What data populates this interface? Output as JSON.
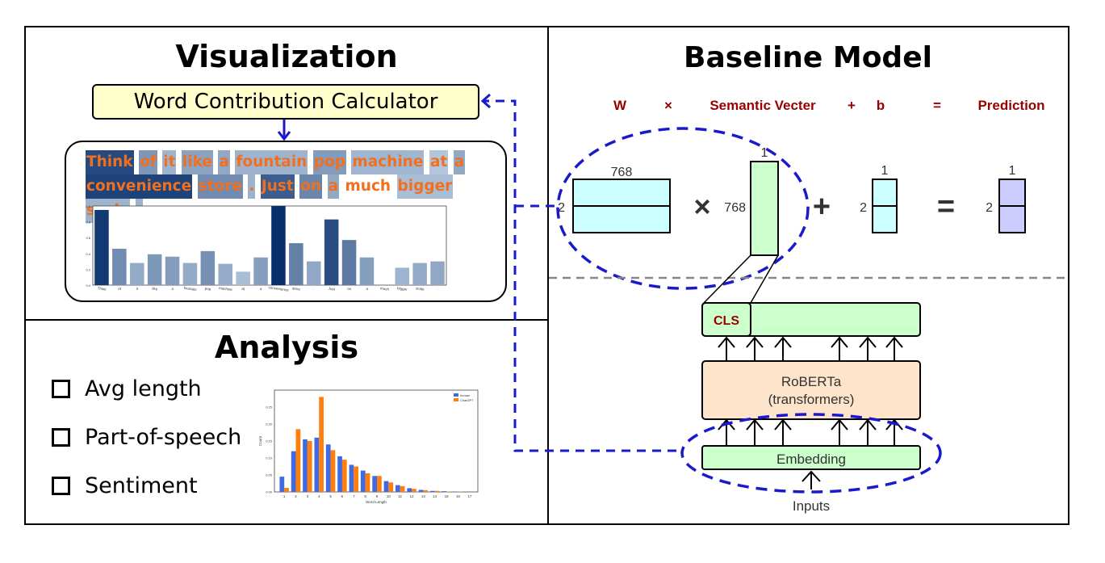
{
  "visualization": {
    "title": "Visualization",
    "calculator_label": "Word Contribution Calculator",
    "tokens": [
      {
        "text": "Think",
        "w": 0.95
      },
      {
        "text": "of",
        "w": 0.46
      },
      {
        "text": "it",
        "w": 0.28
      },
      {
        "text": "like",
        "w": 0.39
      },
      {
        "text": "a",
        "w": 0.36
      },
      {
        "text": "fountain",
        "w": 0.28
      },
      {
        "text": "pop",
        "w": 0.43
      },
      {
        "text": "machine",
        "w": 0.27
      },
      {
        "text": "at",
        "w": 0.17
      },
      {
        "text": "a",
        "w": 0.35
      },
      {
        "text": "convenience",
        "w": 1.0
      },
      {
        "text": "store",
        "w": 0.53
      },
      {
        "text": ".",
        "w": 0.3
      },
      {
        "text": "Just",
        "w": 0.83
      },
      {
        "text": "on",
        "w": 0.57
      },
      {
        "text": "a",
        "w": 0.35
      },
      {
        "text": "much",
        "w": 0.0
      },
      {
        "text": "bigger",
        "w": 0.22
      },
      {
        "text": "scale",
        "w": 0.28
      },
      {
        "text": ".",
        "w": 0.3
      }
    ]
  },
  "word_contribution_chart": {
    "chart_data": {
      "type": "bar",
      "categories": [
        "Think",
        "of",
        "it",
        "like",
        "a",
        "fountain",
        "pop",
        "machine",
        "at",
        "a",
        "convenience",
        "store",
        ".",
        "Just",
        "on",
        "a",
        "much",
        "bigger",
        "scale",
        "."
      ],
      "values": [
        0.95,
        0.46,
        0.28,
        0.39,
        0.36,
        0.28,
        0.43,
        0.27,
        0.17,
        0.35,
        1.0,
        0.53,
        0.3,
        0.83,
        0.57,
        0.35,
        0.0,
        0.22,
        0.28,
        0.3
      ],
      "ylim": [
        0,
        1.0
      ],
      "yticks": [
        "0.0",
        "0.2",
        "0.4",
        "0.6",
        "0.8",
        "1.0"
      ],
      "title": "",
      "xlabel": "",
      "ylabel": ""
    }
  },
  "analysis": {
    "title": "Analysis",
    "items": [
      "Avg length",
      "Part-of-speech",
      "Sentiment"
    ]
  },
  "word_length_chart": {
    "chart_data": {
      "type": "bar",
      "categories": [
        "1",
        "2",
        "3",
        "4",
        "5",
        "6",
        "7",
        "8",
        "9",
        "10",
        "11",
        "12",
        "13",
        "14",
        "15",
        "16",
        "17"
      ],
      "series": [
        {
          "name": "human",
          "color": "#4169e1",
          "values": [
            0.045,
            0.12,
            0.155,
            0.16,
            0.14,
            0.105,
            0.08,
            0.063,
            0.047,
            0.032,
            0.02,
            0.011,
            0.006,
            0.003,
            0.002,
            0.001,
            0.001
          ]
        },
        {
          "name": "ChatGPT",
          "color": "#ff7f0e",
          "values": [
            0.012,
            0.185,
            0.15,
            0.28,
            0.123,
            0.095,
            0.075,
            0.055,
            0.047,
            0.028,
            0.017,
            0.009,
            0.005,
            0.003,
            0.001,
            0.001,
            0.0
          ]
        }
      ],
      "ylim": [
        0,
        0.3
      ],
      "yticks": [
        "0.00",
        "0.05",
        "0.10",
        "0.15",
        "0.20",
        "0.25"
      ],
      "xlabel": "Word Length",
      "ylabel": "Count",
      "legend": "top-right"
    }
  },
  "baseline": {
    "title": "Baseline Model",
    "equation": {
      "w": "W",
      "times": "×",
      "semantic": "Semantic Vecter",
      "plus": "+",
      "b": "b",
      "eq": "=",
      "prediction": "Prediction"
    },
    "matrix_cols": "768",
    "vector_rows": "768",
    "rows_2a": "2",
    "rows_2b": "2",
    "rows_2c": "2",
    "col_1a": "1",
    "col_1b": "1",
    "col_1c": "1",
    "op_times": "×",
    "op_plus": "+",
    "op_eq": "=",
    "cls_label": "CLS",
    "roberta_line1": "RoBERTa",
    "roberta_line2": "(transformers)",
    "embedding_label": "Embedding",
    "inputs_label": "Inputs"
  },
  "colors": {
    "cyan": "#ccffff",
    "green": "#ccffcc",
    "peach": "#ffe4cc",
    "lavender": "#ccccff",
    "accent_red": "#990000",
    "dash_blue": "#1a1acc"
  }
}
